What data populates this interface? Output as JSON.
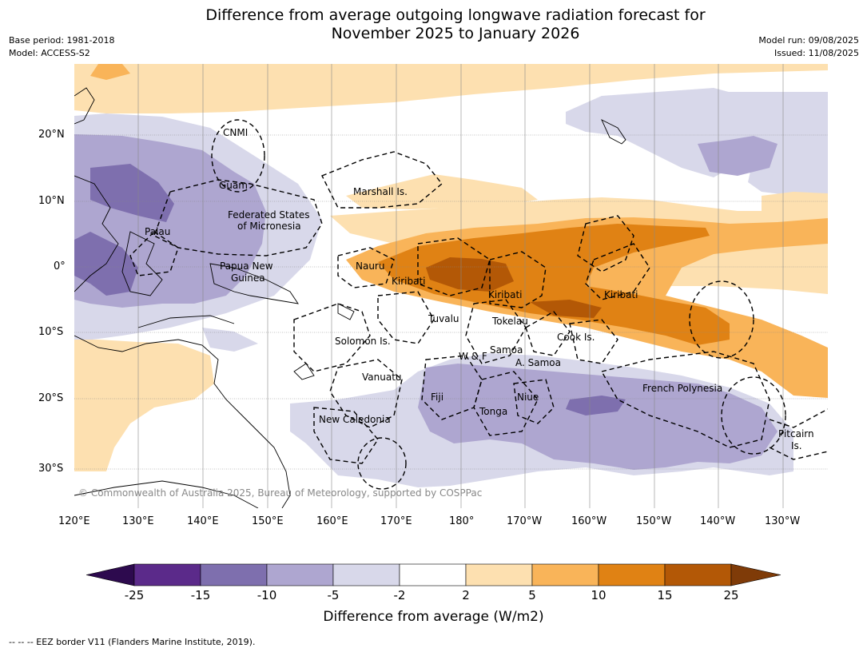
{
  "title": {
    "line1": "Difference from average outgoing longwave radiation forecast for",
    "line2": "November 2025 to January 2026"
  },
  "meta": {
    "base_period": "Base period: 1981-2018",
    "model": "Model: ACCESS-S2",
    "model_run": "Model run: 09/08/2025",
    "issued": "Issued: 11/08/2025"
  },
  "map": {
    "copyright": "© Commonwealth of Australia 2025, Bureau of Meteorology, supported by COSPPac",
    "lat_ticks": [
      "20°N",
      "10°N",
      "0°",
      "10°S",
      "20°S",
      "30°S"
    ],
    "lon_ticks": [
      "120°E",
      "130°E",
      "140°E",
      "150°E",
      "160°E",
      "170°E",
      "180°",
      "170°W",
      "160°W",
      "150°W",
      "140°W",
      "130°W"
    ],
    "regions": {
      "cnmi": "CNMI",
      "guam": "Guam",
      "fsm_1": "Federated States",
      "fsm_2": "of Micronesia",
      "palau": "Palau",
      "marshall": "Marshall Is.",
      "png_1": "Papua New",
      "png_2": "Guinea",
      "nauru": "Nauru",
      "kiribati_w": "Kiribati",
      "kiribati_c": "Kiribati",
      "kiribati_e": "Kiribati",
      "tuvalu": "Tuvalu",
      "tokelau": "Tokelau",
      "cook": "Cook Is.",
      "solomon": "Solomon Is.",
      "samoa": "Samoa",
      "wf": "W & F",
      "asamoa": "A. Samoa",
      "vanuatu": "Vanuatu",
      "fiji": "Fiji",
      "niue": "Niue",
      "tonga": "Tonga",
      "newcal": "New Caledonia",
      "frenchpoly": "French Polynesia",
      "pitcairn_1": "Pitcairn",
      "pitcairn_2": "Is."
    }
  },
  "colorbar": {
    "labels": [
      "-25",
      "-15",
      "-10",
      "-5",
      "-2",
      "2",
      "5",
      "10",
      "15",
      "25"
    ],
    "colors": [
      "#5b2a8a",
      "#7e6fae",
      "#aea6d0",
      "#d8d8ea",
      "#ffffff",
      "#fde0b0",
      "#f9b459",
      "#e08214",
      "#b35806"
    ],
    "under_color": "#2d0a4e",
    "over_color": "#7f3b08",
    "title": "Difference from average (W/m2)"
  },
  "footer": "--  --  -- EEZ border V11 (Flanders Marine Institute, 2019)."
}
